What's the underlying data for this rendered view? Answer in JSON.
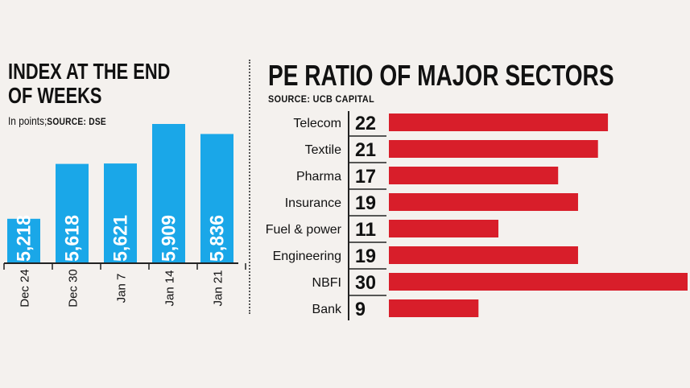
{
  "charts": {
    "left": {
      "title": "INDEX AT THE END OF WEEKS",
      "subtitle": "In points;",
      "source": "SOURCE: DSE"
    },
    "right": {
      "title": "PE RATIO OF MAJOR SECTORS",
      "source": "SOURCE: UCB CAPITAL"
    }
  },
  "colors": {
    "left_bar": "#1aa7e8",
    "right_bar": "#d81e2a",
    "background": "#f4f1ee"
  },
  "chart_data": [
    {
      "type": "bar",
      "title": "INDEX AT THE END OF WEEKS",
      "subtitle": "In points;",
      "categories": [
        "Dec 24",
        "Dec 30",
        "Jan 7",
        "Jan 14",
        "Jan 21"
      ],
      "values": [
        5218,
        5618,
        5621,
        5909,
        5836
      ],
      "value_labels": [
        "5,218",
        "5,618",
        "5,621",
        "5,909",
        "5,836"
      ],
      "ylim": [
        4900,
        6000
      ],
      "orientation": "vertical",
      "grid": false
    },
    {
      "type": "bar",
      "title": "PE RATIO OF MAJOR SECTORS",
      "categories": [
        "Telecom",
        "Textile",
        "Pharma",
        "Insurance",
        "Fuel & power",
        "Engineering",
        "NBFI",
        "Bank"
      ],
      "values": [
        22,
        21,
        17,
        19,
        11,
        19,
        30,
        9
      ],
      "xlim": [
        0,
        30
      ],
      "orientation": "horizontal",
      "grid": false
    }
  ]
}
